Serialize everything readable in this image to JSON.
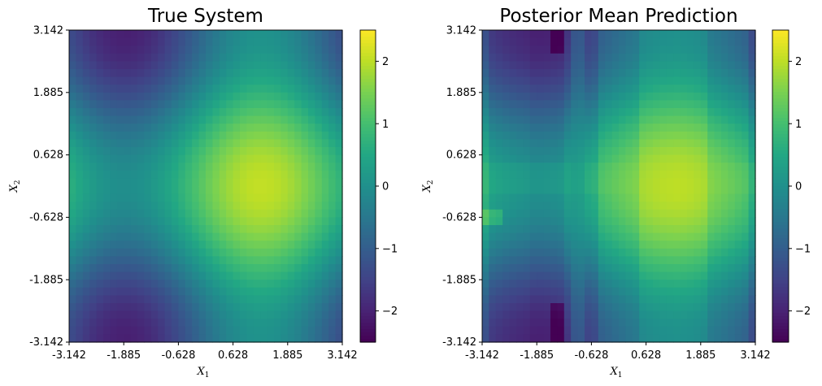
{
  "chart_data": [
    {
      "type": "heatmap",
      "title": "True System",
      "xlabel": "X",
      "xlabel_sub": "1",
      "ylabel": "X",
      "ylabel_sub": "2",
      "x_ticks": [
        "-3.142",
        "-1.885",
        "-0.628",
        "0.628",
        "1.885",
        "3.142"
      ],
      "y_ticks": [
        "-3.142",
        "-1.885",
        "-0.628",
        "0.628",
        "1.885",
        "3.142"
      ],
      "xlim": [
        -3.142,
        3.142
      ],
      "ylim": [
        -3.142,
        3.142
      ],
      "grid_cells": 40,
      "value_range": [
        -2.5,
        2.5
      ],
      "colormap": "viridis",
      "surface": "sin(X1) + cos(X2) + 0.3*cos(X1) (approximate, read from image)",
      "colorbar": {
        "ticks": [
          "2",
          "1",
          "0",
          "−1",
          "−2"
        ],
        "values": [
          2,
          1,
          0,
          -1,
          -2
        ],
        "range": [
          -2.5,
          2.5
        ]
      }
    },
    {
      "type": "heatmap",
      "title": "Posterior Mean Prediction",
      "xlabel": "X",
      "xlabel_sub": "1",
      "ylabel": "X",
      "ylabel_sub": "2",
      "x_ticks": [
        "-3.142",
        "-1.885",
        "-0.628",
        "0.628",
        "1.885",
        "3.142"
      ],
      "y_ticks": [
        "-3.142",
        "-1.885",
        "-0.628",
        "0.628",
        "1.885",
        "3.142"
      ],
      "xlim": [
        -3.142,
        3.142
      ],
      "ylim": [
        -3.142,
        3.142
      ],
      "grid_cells": 40,
      "value_range": [
        -2.5,
        2.5
      ],
      "colormap": "viridis",
      "surface": "blocky approximation of the true system with horizontal/vertical band artifacts",
      "colorbar": {
        "ticks": [
          "2",
          "1",
          "0",
          "−1",
          "−2"
        ],
        "values": [
          2,
          1,
          0,
          -1,
          -2
        ],
        "range": [
          -2.5,
          2.5
        ]
      }
    }
  ]
}
